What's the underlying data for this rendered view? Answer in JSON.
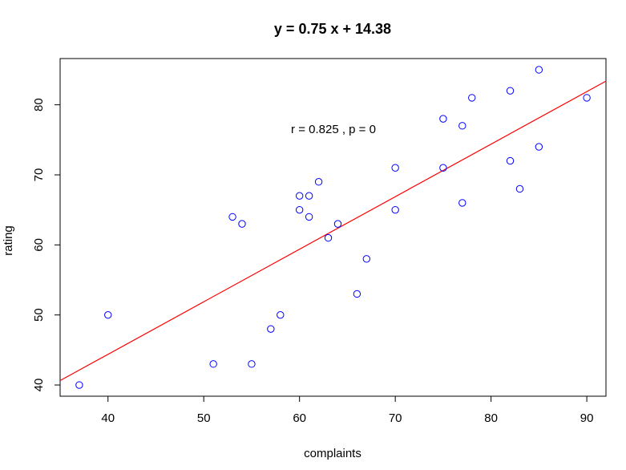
{
  "chart_data": {
    "type": "scatter",
    "title": "y = 0.75 x + 14.38",
    "xlabel": "complaints",
    "ylabel": "rating",
    "annotation": "r = 0.825 , p = 0",
    "xlim": [
      35,
      92
    ],
    "ylim": [
      38.4,
      86.6
    ],
    "xticks": [
      40,
      50,
      60,
      70,
      80,
      90
    ],
    "yticks": [
      40,
      50,
      60,
      70,
      80
    ],
    "grid": false,
    "point_color": "#0000ff",
    "line_color": "#ff0000",
    "fit": {
      "slope": 0.75,
      "intercept": 14.38
    },
    "x": [
      37,
      40,
      51,
      53,
      54,
      55,
      57,
      58,
      60,
      60,
      61,
      61,
      62,
      63,
      64,
      66,
      67,
      70,
      70,
      75,
      75,
      77,
      77,
      78,
      82,
      82,
      83,
      85,
      85,
      90
    ],
    "y": [
      40,
      50,
      43,
      64,
      63,
      43,
      48,
      50,
      67,
      65,
      67,
      64,
      69,
      61,
      63,
      53,
      58,
      71,
      65,
      78,
      71,
      77,
      66,
      81,
      82,
      72,
      68,
      85,
      74,
      81
    ]
  }
}
